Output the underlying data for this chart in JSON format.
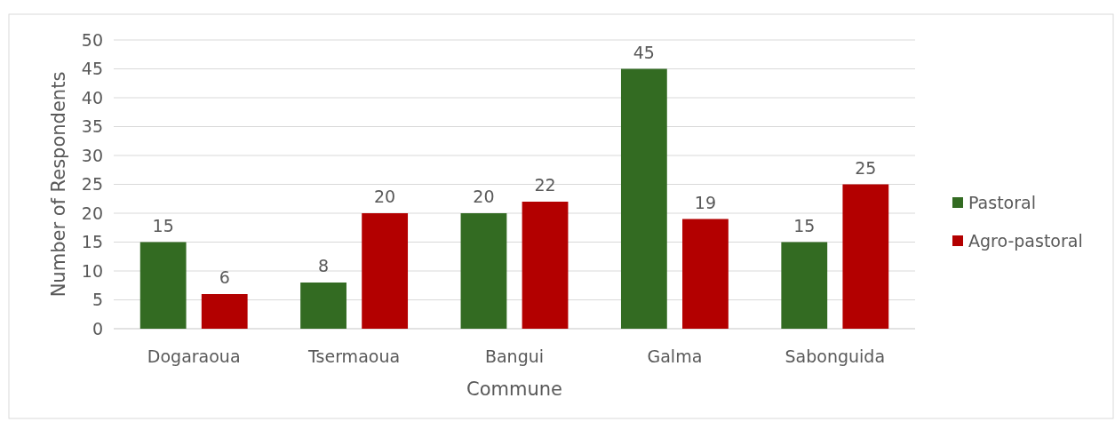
{
  "chart_data": {
    "type": "bar",
    "xlabel": "Commune",
    "ylabel": "Number of Respondents",
    "categories": [
      "Dogaraoua",
      "Tsermaoua",
      "Bangui",
      "Galma",
      "Sabonguida"
    ],
    "series": [
      {
        "name": "Pastoral",
        "color": "#336b22",
        "values": [
          15,
          8,
          20,
          45,
          15
        ]
      },
      {
        "name": "Agro-pastoral",
        "color": "#b30000",
        "values": [
          6,
          20,
          22,
          19,
          25
        ]
      }
    ],
    "ylim": [
      0,
      50
    ],
    "yticks": [
      0,
      5,
      10,
      15,
      20,
      25,
      30,
      35,
      40,
      45,
      50
    ],
    "grid": "y",
    "legend": "right",
    "data_labels": true
  }
}
